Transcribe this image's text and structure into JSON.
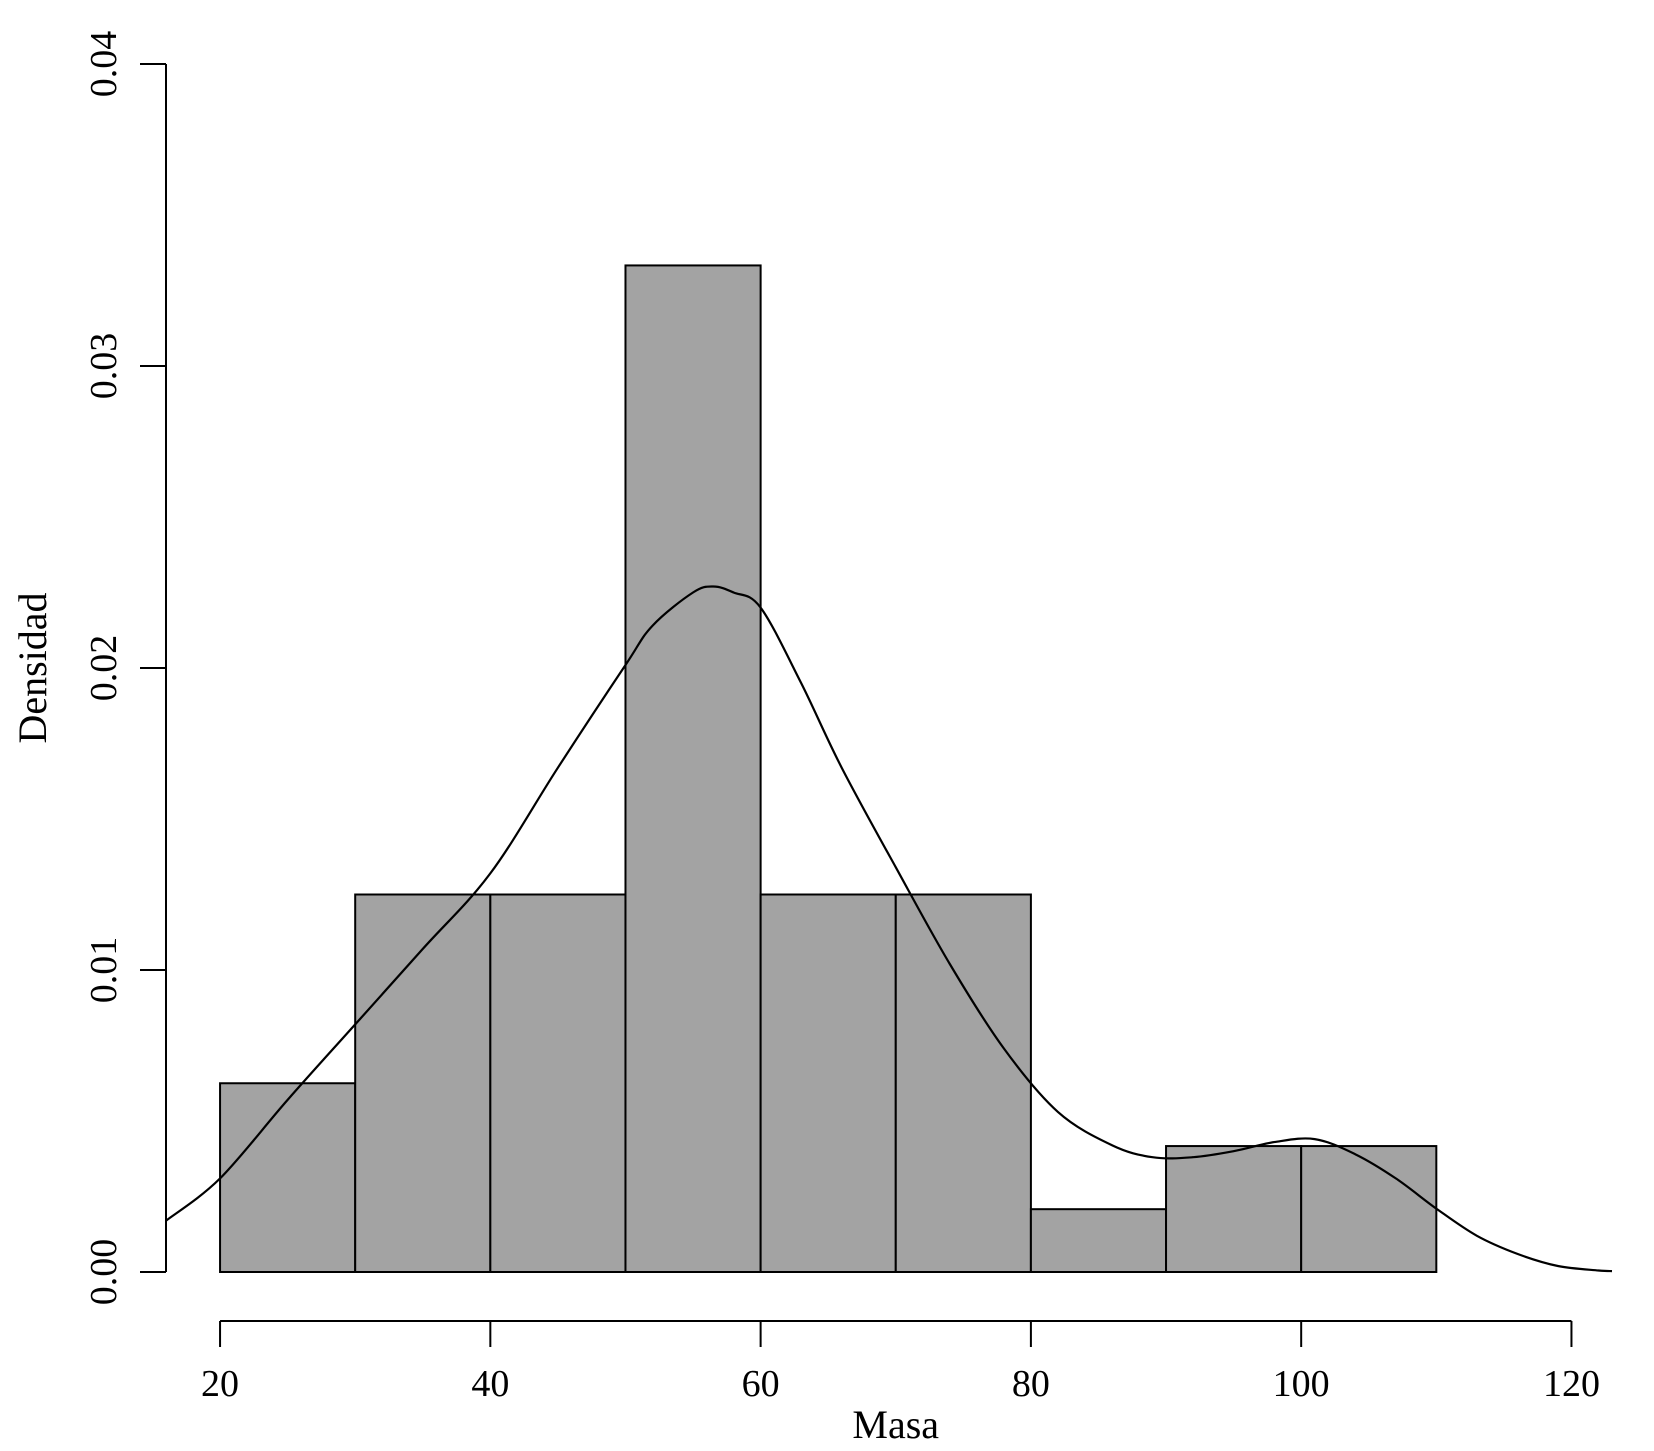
{
  "chart_data": {
    "type": "bar",
    "subtype": "histogram-with-density",
    "title": "",
    "xlabel": "Masa",
    "ylabel": "Densidad",
    "xlim": [
      16,
      123
    ],
    "ylim": [
      0,
      0.04
    ],
    "x_ticks": [
      20,
      40,
      60,
      80,
      100,
      120
    ],
    "x_tick_labels": [
      "20",
      "40",
      "60",
      "80",
      "100",
      "120"
    ],
    "y_ticks": [
      0,
      0.01,
      0.02,
      0.03,
      0.04
    ],
    "y_tick_labels": [
      "0.00",
      "0.01",
      "0.02",
      "0.03",
      "0.04"
    ],
    "bins": [
      {
        "from": 20,
        "to": 30,
        "density": 0.00625
      },
      {
        "from": 30,
        "to": 40,
        "density": 0.0125
      },
      {
        "from": 40,
        "to": 50,
        "density": 0.0125
      },
      {
        "from": 50,
        "to": 60,
        "density": 0.03333
      },
      {
        "from": 60,
        "to": 70,
        "density": 0.0125
      },
      {
        "from": 70,
        "to": 80,
        "density": 0.0125
      },
      {
        "from": 80,
        "to": 90,
        "density": 0.00208
      },
      {
        "from": 90,
        "to": 100,
        "density": 0.00417
      },
      {
        "from": 100,
        "to": 110,
        "density": 0.00417
      }
    ],
    "density_curve": {
      "x": [
        16,
        20,
        25,
        30,
        35,
        40,
        45,
        50,
        52,
        55,
        56.5,
        58,
        60,
        63,
        66,
        70,
        74,
        78,
        82,
        86,
        89,
        92,
        95,
        98,
        101,
        104,
        107,
        110,
        113,
        116,
        119,
        122,
        123
      ],
      "y": [
        0.0017,
        0.0031,
        0.0057,
        0.0082,
        0.0107,
        0.0132,
        0.0167,
        0.0201,
        0.0214,
        0.0225,
        0.0227,
        0.0225,
        0.022,
        0.0195,
        0.0167,
        0.0134,
        0.0102,
        0.0074,
        0.0053,
        0.0042,
        0.0038,
        0.0038,
        0.004,
        0.0043,
        0.0044,
        0.0039,
        0.0031,
        0.0021,
        0.0012,
        0.0006,
        0.0002,
        5e-05,
        3e-05
      ]
    },
    "grid": false,
    "legend": "none",
    "bar_color": "#a3a3a3"
  }
}
